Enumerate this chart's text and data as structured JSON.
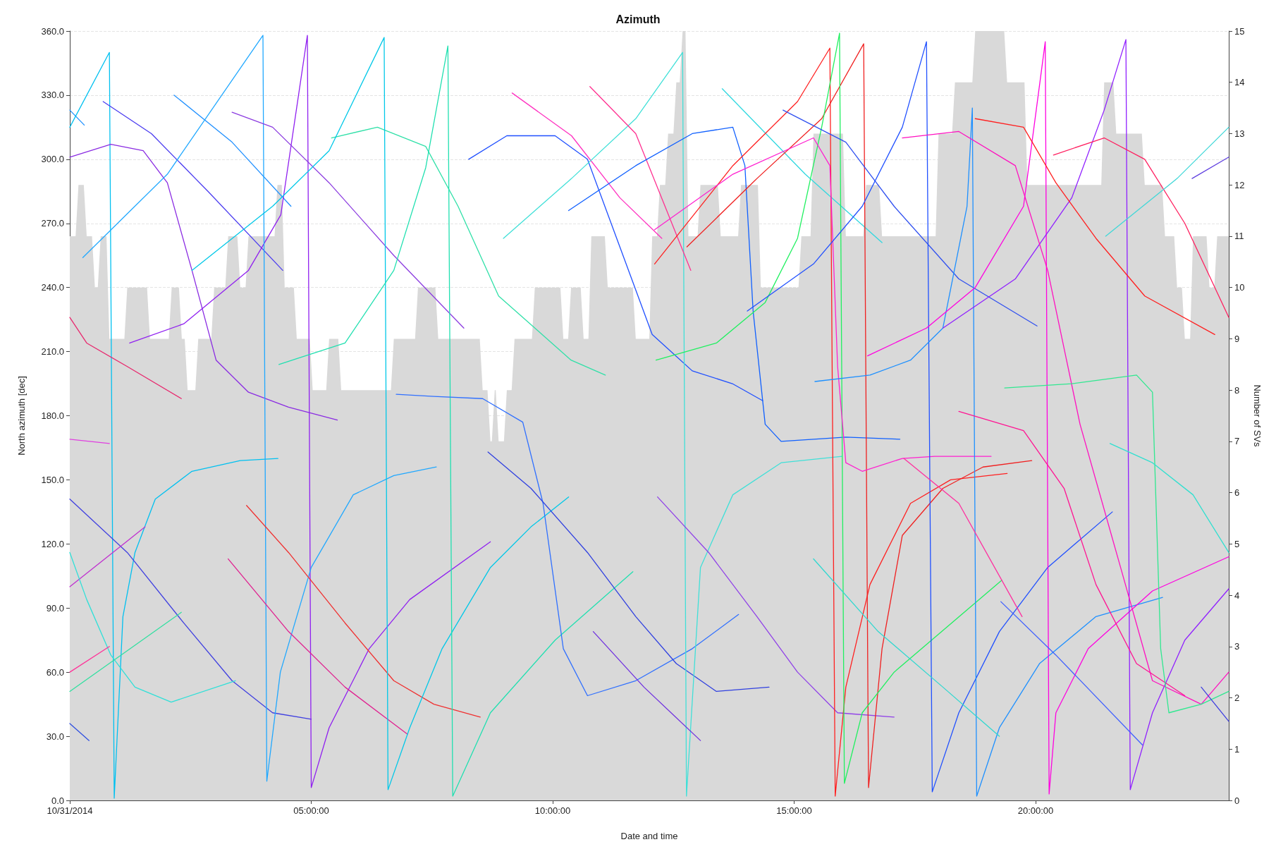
{
  "chart_data": {
    "type": "line",
    "title": "Azimuth",
    "xlabel": "Date and time",
    "ylabel": "North azimuth [dec]",
    "y2label": "Number of SVs",
    "xlim": [
      0,
      24
    ],
    "xticks": [
      {
        "value": 0,
        "label": "10/31/2014"
      },
      {
        "value": 5,
        "label": "05:00:00"
      },
      {
        "value": 10,
        "label": "10:00:00"
      },
      {
        "value": 15,
        "label": "15:00:00"
      },
      {
        "value": 20,
        "label": "20:00:00"
      }
    ],
    "ylim": [
      0,
      360
    ],
    "yticks": [
      {
        "value": 0,
        "label": "0.0"
      },
      {
        "value": 30,
        "label": "30.0"
      },
      {
        "value": 60,
        "label": "60.0"
      },
      {
        "value": 90,
        "label": "90.0"
      },
      {
        "value": 120,
        "label": "120.0"
      },
      {
        "value": 150,
        "label": "150.0"
      },
      {
        "value": 180,
        "label": "180.0"
      },
      {
        "value": 210,
        "label": "210.0"
      },
      {
        "value": 240,
        "label": "240.0"
      },
      {
        "value": 270,
        "label": "270.0"
      },
      {
        "value": 300,
        "label": "300.0"
      },
      {
        "value": 330,
        "label": "330.0"
      },
      {
        "value": 360,
        "label": "360.0"
      }
    ],
    "y2lim": [
      0,
      15
    ],
    "y2ticks": [
      0,
      1,
      2,
      3,
      4,
      5,
      6,
      7,
      8,
      9,
      10,
      11,
      12,
      13,
      14,
      15
    ],
    "grid": "y",
    "marker": "none",
    "line_style": "solid",
    "series": [
      {
        "type": "area",
        "axis": "y2",
        "color": "#d9d9d9",
        "x": [
          0,
          0.12,
          0.18,
          0.29,
          0.35,
          0.46,
          0.52,
          0.58,
          0.64,
          0.76,
          0.82,
          1.13,
          1.19,
          1.6,
          1.66,
          2.05,
          2.11,
          2.26,
          2.32,
          2.38,
          2.44,
          2.6,
          2.66,
          2.93,
          2.99,
          3.22,
          3.28,
          3.47,
          3.53,
          3.64,
          3.7,
          4.24,
          4.3,
          4.39,
          4.45,
          4.64,
          4.7,
          4.97,
          5.03,
          5.31,
          5.37,
          5.56,
          5.62,
          6.65,
          6.71,
          7.15,
          7.21,
          7.57,
          7.63,
          8.49,
          8.55,
          8.65,
          8.71,
          8.74,
          8.8,
          8.82,
          8.88,
          8.99,
          9.05,
          9.15,
          9.21,
          9.57,
          9.63,
          10.16,
          10.22,
          10.32,
          10.38,
          10.58,
          10.64,
          10.74,
          10.8,
          11.08,
          11.14,
          11.66,
          11.72,
          12,
          12.06,
          12.16,
          12.22,
          12.33,
          12.39,
          12.5,
          12.56,
          12.63,
          12.69,
          12.75,
          12.81,
          13,
          13.06,
          13.42,
          13.48,
          13.84,
          13.9,
          14.25,
          14.31,
          15.09,
          15.15,
          15.34,
          15.4,
          16.01,
          16.07,
          16.43,
          16.49,
          16.76,
          16.82,
          17.93,
          17.99,
          18.27,
          18.33,
          18.69,
          18.75,
          19.35,
          19.41,
          19.77,
          19.83,
          21.36,
          21.42,
          21.61,
          21.67,
          22.2,
          22.26,
          22.62,
          22.68,
          22.87,
          22.93,
          23.03,
          23.09,
          23.2,
          23.26,
          23.54,
          23.6,
          23.7,
          23.76,
          24
        ],
        "values": [
          11,
          11,
          12,
          12,
          11,
          11,
          10,
          10,
          11,
          11,
          9,
          9,
          10,
          10,
          9,
          9,
          10,
          10,
          9,
          9,
          8,
          8,
          9,
          9,
          10,
          10,
          11,
          11,
          10,
          10,
          11,
          11,
          12,
          12,
          10,
          10,
          9,
          9,
          8,
          8,
          9,
          9,
          8,
          8,
          9,
          9,
          10,
          10,
          9,
          9,
          8,
          8,
          7,
          7,
          8,
          8,
          7,
          7,
          8,
          8,
          9,
          9,
          10,
          10,
          9,
          9,
          10,
          10,
          9,
          9,
          11,
          11,
          10,
          10,
          9,
          9,
          11,
          11,
          12,
          12,
          13,
          13,
          14,
          14,
          15,
          15,
          11,
          11,
          12,
          12,
          11,
          11,
          12,
          12,
          10,
          10,
          11,
          11,
          13,
          13,
          11,
          11,
          12,
          12,
          11,
          11,
          13,
          13,
          14,
          14,
          15,
          15,
          14,
          14,
          12,
          12,
          14,
          14,
          13,
          13,
          12,
          12,
          11,
          11,
          10,
          10,
          9,
          9,
          11,
          11,
          10,
          10,
          11,
          11
        ]
      },
      {
        "color": "#1e90ff",
        "x": [
          0,
          0.3
        ],
        "values": [
          323,
          316
        ]
      },
      {
        "color": "#00c0f0",
        "x": [
          0,
          0.82,
          0.92,
          1.1,
          1.35,
          1.77,
          2.53,
          3.53,
          4.31
        ],
        "values": [
          315,
          350,
          1,
          86,
          116,
          141,
          154,
          159,
          160
        ]
      },
      {
        "color": "#4b3cf0",
        "x": [
          0.69,
          1.69,
          2.86,
          4.41
        ],
        "values": [
          327,
          312,
          285,
          248
        ]
      },
      {
        "color": "#8a2be2",
        "x": [
          0,
          0.85,
          1.52,
          2.02,
          2.53,
          3.03,
          3.7,
          4.53,
          5.54
        ],
        "values": [
          301,
          307,
          304,
          289,
          248,
          206,
          191,
          184,
          178
        ]
      },
      {
        "color": "#e8286e",
        "x": [
          0,
          0.35,
          1.19,
          2.31
        ],
        "values": [
          226,
          214,
          203,
          188
        ]
      },
      {
        "color": "#e040e0",
        "x": [
          0,
          0.82
        ],
        "values": [
          169,
          167
        ]
      },
      {
        "color": "#4040e0",
        "x": [
          0,
          1.19,
          2.36,
          3.36,
          4.2,
          5
        ],
        "values": [
          141,
          116,
          83,
          56,
          41,
          38
        ]
      },
      {
        "color": "#c030d0",
        "x": [
          0,
          1.56
        ],
        "values": [
          100,
          128
        ]
      },
      {
        "color": "#30e0d8",
        "x": [
          0,
          0.35,
          0.85,
          1.35,
          2.1,
          3.43
        ],
        "values": [
          116,
          94,
          68,
          53,
          46,
          56
        ]
      },
      {
        "color": "#30e0a0",
        "x": [
          0,
          2.31
        ],
        "values": [
          51,
          88
        ]
      },
      {
        "color": "#ff3399",
        "x": [
          0,
          0.82
        ],
        "values": [
          60,
          72
        ]
      },
      {
        "color": "#3050e0",
        "x": [
          0,
          0.4
        ],
        "values": [
          36,
          28
        ]
      },
      {
        "color": "#2090ff",
        "x": [
          2.16,
          3.36,
          4.58
        ],
        "values": [
          330,
          308,
          278
        ]
      },
      {
        "color": "#9020f0",
        "x": [
          1.24,
          2.36,
          3.7,
          4.37,
          4.92,
          5,
          5.37,
          6.2,
          7.04,
          8.71
        ],
        "values": [
          214,
          223,
          248,
          274,
          358,
          6,
          34,
          71,
          94,
          121
        ]
      },
      {
        "color": "#20a8ff",
        "x": [
          0.27,
          2.02,
          4,
          4.08,
          4.36,
          5,
          5.87,
          6.71,
          7.59
        ],
        "values": [
          254,
          293,
          358,
          9,
          60,
          109,
          143,
          152,
          156
        ]
      },
      {
        "color": "#8c3ce0",
        "x": [
          3.36,
          4.2,
          5.37,
          6.71,
          8.16
        ],
        "values": [
          322,
          315,
          289,
          255,
          221
        ]
      },
      {
        "color": "#f03030",
        "x": [
          3.66,
          4.53,
          5.7,
          6.71,
          7.54,
          8.5
        ],
        "values": [
          138,
          116,
          83,
          56,
          45,
          39
        ]
      },
      {
        "color": "#e02090",
        "x": [
          3.28,
          4.53,
          5.7,
          6.99
        ],
        "values": [
          113,
          79,
          53,
          31
        ]
      },
      {
        "color": "#30e0a8",
        "x": [
          5.42,
          6.37,
          7.37,
          8.04,
          8.88,
          10.38,
          11.09
        ],
        "values": [
          310,
          315,
          306,
          278,
          236,
          206,
          199
        ]
      },
      {
        "color": "#00c8e8",
        "x": [
          2.53,
          4.2,
          5.37,
          6.51,
          6.59,
          7.04,
          7.71,
          8.71,
          9.55,
          10.33
        ],
        "values": [
          248,
          278,
          304,
          357,
          5,
          34,
          71,
          109,
          128,
          142
        ]
      },
      {
        "color": "#20e0b0",
        "x": [
          4.33,
          5.7,
          6.71,
          7.37,
          7.83,
          7.93,
          8.71,
          10.05,
          11.66
        ],
        "values": [
          204,
          214,
          248,
          296,
          353,
          2,
          41,
          75,
          107
        ]
      },
      {
        "color": "#3070ff",
        "x": [
          6.76,
          7.54,
          8.55,
          9.38,
          9.8,
          10.22,
          10.72,
          11.72,
          12.89,
          13.85
        ],
        "values": [
          190,
          189,
          188,
          177,
          139,
          71,
          49,
          56,
          71,
          87
        ]
      },
      {
        "color": "#2050ff",
        "x": [
          8.26,
          9.05,
          10.05,
          10.72,
          11.39,
          12.06,
          12.89,
          13.72,
          14.35
        ],
        "values": [
          300,
          311,
          311,
          300,
          259,
          218,
          201,
          195,
          187
        ]
      },
      {
        "color": "#3040e0",
        "x": [
          8.66,
          9.55,
          10.72,
          11.72,
          12.56,
          13.39,
          14.48
        ],
        "values": [
          163,
          146,
          116,
          86,
          64,
          51,
          53
        ]
      },
      {
        "color": "#ff30c0",
        "x": [
          9.16,
          10.39,
          11.39,
          12.26
        ],
        "values": [
          331,
          311,
          282,
          263
        ]
      },
      {
        "color": "#40e0d8",
        "x": [
          8.98,
          10.39,
          11.72,
          12.69,
          12.77,
          13.06,
          13.73,
          14.73,
          15.99
        ],
        "values": [
          263,
          291,
          319,
          350,
          2,
          109,
          143,
          158,
          161
        ]
      },
      {
        "color": "#ff3090",
        "x": [
          10.77,
          11.72,
          12.86
        ],
        "values": [
          334,
          312,
          248
        ]
      },
      {
        "color": "#1060ff",
        "x": [
          10.33,
          11.72,
          12.89,
          13.73,
          13.98,
          14.15,
          14.4,
          14.73,
          16.07,
          17.19
        ],
        "values": [
          276,
          297,
          312,
          315,
          297,
          229,
          176,
          168,
          170,
          169
        ]
      },
      {
        "color": "#30d8e0",
        "x": [
          13.51,
          15.23,
          16.82
        ],
        "values": [
          333,
          293,
          261
        ]
      },
      {
        "color": "#7030e0",
        "x": [
          10.84,
          11.89,
          13.06
        ],
        "values": [
          79,
          53,
          28
        ]
      },
      {
        "color": "#9040e8",
        "x": [
          12.17,
          13.23,
          14.23,
          15.07,
          15.9,
          17.07
        ],
        "values": [
          142,
          116,
          86,
          60,
          41,
          39
        ]
      },
      {
        "color": "#ff2020",
        "x": [
          12.11,
          13.73,
          15.07,
          15.74,
          15.85,
          16.07,
          16.57,
          17.41,
          18.24,
          19.41
        ],
        "values": [
          251,
          297,
          327,
          352,
          2,
          53,
          101,
          139,
          150,
          153
        ]
      },
      {
        "color": "#f02020",
        "x": [
          12.78,
          14.23,
          15.57,
          16.44,
          16.54,
          16.82,
          17.24,
          18.08,
          18.91,
          19.92
        ],
        "values": [
          259,
          291,
          319,
          354,
          6,
          71,
          124,
          146,
          156,
          159
        ]
      },
      {
        "color": "#20f060",
        "x": [
          12.14,
          13.39,
          14.4,
          15.07,
          15.57,
          15.94,
          16.04,
          16.41,
          17.07,
          19.3
        ],
        "values": [
          206,
          214,
          233,
          263,
          315,
          359,
          8,
          41,
          60,
          103
        ]
      },
      {
        "color": "#ff20d0",
        "x": [
          12.11,
          13.73,
          15.4,
          15.74,
          15.9,
          16.07,
          16.41,
          17.24,
          17.91,
          19.08
        ],
        "values": [
          267,
          293,
          310,
          297,
          203,
          158,
          154,
          160,
          161,
          161
        ]
      },
      {
        "color": "#3050f0",
        "x": [
          14.77,
          16.07,
          17.07,
          18.41,
          20.03
        ],
        "values": [
          323,
          308,
          278,
          244,
          222
        ]
      },
      {
        "color": "#2050ff",
        "x": [
          14.03,
          15.4,
          16.41,
          17.24,
          17.74,
          17.86,
          18.41,
          19.25,
          20.25,
          21.59
        ],
        "values": [
          229,
          251,
          278,
          315,
          355,
          4,
          41,
          79,
          109,
          135
        ]
      },
      {
        "color": "#1e90ff",
        "x": [
          15.43,
          16.57,
          17.41,
          18.08,
          18.58,
          18.69,
          18.78,
          19.25,
          20.08,
          21.25,
          22.63
        ],
        "values": [
          196,
          199,
          206,
          221,
          278,
          324,
          2,
          34,
          64,
          86,
          95
        ]
      },
      {
        "color": "#ff00e0",
        "x": [
          16.52,
          17.74,
          18.75,
          19.75,
          20.2,
          20.28,
          20.42,
          21.09,
          22.42,
          24
        ],
        "values": [
          208,
          221,
          240,
          278,
          355,
          3,
          41,
          71,
          98,
          114
        ]
      },
      {
        "color": "#9020ff",
        "x": [
          18.08,
          19.58,
          20.75,
          21.42,
          21.87,
          21.96,
          22.42,
          23.09,
          24
        ],
        "values": [
          221,
          244,
          282,
          323,
          356,
          5,
          41,
          75,
          99
        ]
      },
      {
        "color": "#ff10c0",
        "x": [
          17.24,
          18.41,
          19.58,
          20.25,
          20.92,
          21.76,
          22.42,
          23.43,
          24
        ],
        "values": [
          310,
          313,
          297,
          248,
          176,
          109,
          56,
          45,
          60
        ]
      },
      {
        "color": "#ff2020",
        "x": [
          18.75,
          19.75,
          20.42,
          21.25,
          22.26,
          23.71
        ],
        "values": [
          319,
          315,
          289,
          263,
          236,
          218
        ]
      },
      {
        "color": "#ff2060",
        "x": [
          20.37,
          21.42,
          22.26,
          23.09,
          24
        ],
        "values": [
          302,
          310,
          300,
          270,
          226
        ]
      },
      {
        "color": "#ff1493",
        "x": [
          18.41,
          19.75,
          20.59,
          21.25,
          22.09,
          23.09
        ],
        "values": [
          182,
          173,
          146,
          101,
          64,
          49
        ]
      },
      {
        "color": "#30e890",
        "x": [
          19.36,
          20.75,
          22.09,
          22.42,
          22.59,
          22.76,
          23.43,
          24
        ],
        "values": [
          193,
          195,
          199,
          191,
          71,
          41,
          45,
          51
        ]
      },
      {
        "color": "#30e0d0",
        "x": [
          21.54,
          22.42,
          23.26,
          24
        ],
        "values": [
          167,
          158,
          143,
          116
        ]
      },
      {
        "color": "#40d8d8",
        "x": [
          21.45,
          22.93,
          24
        ],
        "values": [
          264,
          291,
          315
        ]
      },
      {
        "color": "#30d8d0",
        "x": [
          15.4,
          16.74,
          18.08,
          19.25
        ],
        "values": [
          113,
          79,
          53,
          30
        ]
      },
      {
        "color": "#4060ff",
        "x": [
          19.28,
          20.42,
          22.21
        ],
        "values": [
          93,
          68,
          26
        ]
      },
      {
        "color": "#4040e0",
        "x": [
          23.43,
          24
        ],
        "values": [
          53,
          37
        ]
      },
      {
        "color": "#6040e0",
        "x": [
          23.24,
          24
        ],
        "values": [
          291,
          301
        ]
      },
      {
        "color": "#ff30a0",
        "x": [
          17.27,
          18.41,
          19.72
        ],
        "values": [
          160,
          139,
          86
        ]
      }
    ]
  }
}
